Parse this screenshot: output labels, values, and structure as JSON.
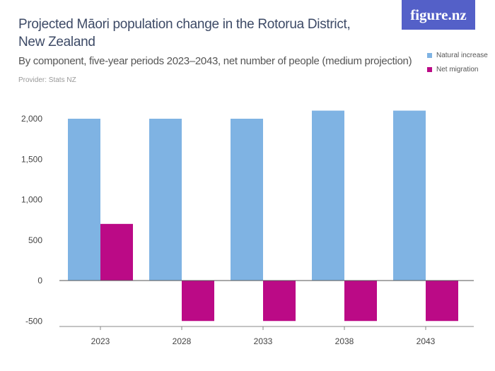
{
  "header": {
    "title": "Projected Māori population change in the Rotorua District, New Zealand",
    "subtitle": "By component, five-year periods 2023–2043, net number of people (medium projection)",
    "provider": "Provider: Stats NZ",
    "logo": "figure.nz"
  },
  "chart_data": {
    "type": "bar",
    "title": "Projected Māori population change in the Rotorua District, New Zealand",
    "categories": [
      "2023",
      "2028",
      "2033",
      "2038",
      "2043"
    ],
    "series": [
      {
        "name": "Natural increase",
        "color": "#7fb3e3",
        "values": [
          2000,
          2000,
          2000,
          2100,
          2100
        ]
      },
      {
        "name": "Net migration",
        "color": "#bb0a86",
        "values": [
          700,
          -500,
          -500,
          -500,
          -500
        ]
      }
    ],
    "ylim": [
      -500,
      2000
    ],
    "yticks": [
      -500,
      0,
      500,
      1000,
      1500,
      2000
    ],
    "ytick_labels": [
      "-500",
      "0",
      "500",
      "1,000",
      "1,500",
      "2,000"
    ],
    "grid": false,
    "legend": "top-right"
  }
}
